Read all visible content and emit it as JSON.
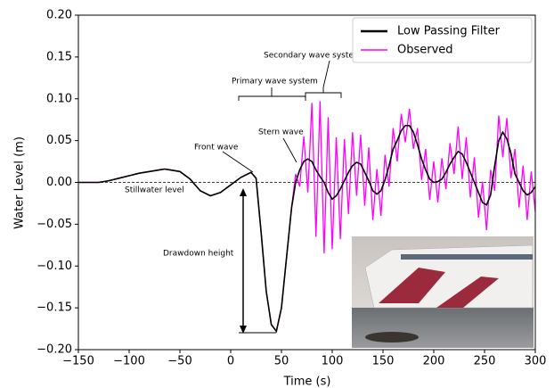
{
  "chart_data": {
    "type": "line",
    "xlabel": "Time (s)",
    "ylabel": "Water Level (m)",
    "x": [
      -150,
      -130,
      -120,
      -110,
      -100,
      -90,
      -80,
      -70,
      -65,
      -60,
      -50,
      -40,
      -30,
      -20,
      -10,
      0,
      10,
      20,
      25,
      30,
      35,
      40,
      45,
      50,
      55,
      60,
      64,
      68,
      72,
      76,
      80,
      84,
      88,
      92,
      96,
      100,
      104,
      108,
      112,
      116,
      120,
      124,
      128,
      132,
      136,
      140,
      144,
      148,
      152,
      156,
      160,
      164,
      168,
      172,
      176,
      180,
      184,
      188,
      192,
      196,
      200,
      204,
      208,
      212,
      216,
      220,
      224,
      228,
      232,
      236,
      240,
      244,
      248,
      252,
      256,
      260,
      264,
      268,
      272,
      276,
      280,
      284,
      288,
      292,
      296,
      300
    ],
    "series": [
      {
        "name": "Low Passing Filter",
        "color": "#000000",
        "values": [
          0,
          0,
          0.002,
          0.005,
          0.008,
          0.011,
          0.013,
          0.015,
          0.016,
          0.015,
          0.013,
          0.004,
          -0.01,
          -0.016,
          -0.012,
          -0.003,
          0.006,
          0.012,
          0.005,
          -0.06,
          -0.13,
          -0.17,
          -0.178,
          -0.15,
          -0.09,
          -0.03,
          0.0,
          0.015,
          0.025,
          0.028,
          0.025,
          0.015,
          0.007,
          0.0,
          -0.012,
          -0.02,
          -0.016,
          -0.008,
          0.002,
          0.012,
          0.02,
          0.024,
          0.022,
          0.012,
          0.002,
          -0.01,
          -0.014,
          -0.01,
          0.003,
          0.02,
          0.04,
          0.05,
          0.062,
          0.068,
          0.068,
          0.06,
          0.045,
          0.028,
          0.015,
          0.004,
          0.0,
          0.001,
          0.004,
          0.012,
          0.022,
          0.03,
          0.037,
          0.034,
          0.024,
          0.012,
          0.0,
          -0.012,
          -0.024,
          -0.027,
          -0.015,
          0.02,
          0.05,
          0.06,
          0.052,
          0.035,
          0.01,
          0.0,
          -0.01,
          -0.015,
          -0.012,
          -0.005
        ]
      },
      {
        "name": "Observed",
        "color": "#ff00ff",
        "values": [
          0,
          0,
          0.002,
          0.005,
          0.008,
          0.011,
          0.013,
          0.015,
          0.016,
          0.015,
          0.013,
          0.004,
          -0.01,
          -0.016,
          -0.012,
          -0.003,
          0.006,
          0.012,
          0.005,
          -0.06,
          -0.13,
          -0.17,
          -0.178,
          -0.15,
          -0.09,
          -0.03,
          0.01,
          -0.005,
          0.055,
          -0.012,
          0.095,
          -0.065,
          0.097,
          -0.085,
          0.078,
          -0.08,
          0.054,
          -0.068,
          0.052,
          -0.038,
          0.06,
          -0.016,
          0.057,
          -0.028,
          0.042,
          -0.045,
          0.016,
          -0.04,
          0.033,
          -0.005,
          0.065,
          0.025,
          0.082,
          0.048,
          0.088,
          0.04,
          0.065,
          0.003,
          0.04,
          -0.021,
          0.025,
          -0.024,
          0.029,
          -0.008,
          0.047,
          0.01,
          0.067,
          0.004,
          0.054,
          -0.018,
          0.03,
          -0.042,
          0.001,
          -0.057,
          0.015,
          -0.01,
          0.08,
          0.03,
          0.077,
          0.005,
          0.04,
          -0.03,
          0.02,
          -0.045,
          0.013,
          -0.035
        ]
      }
    ],
    "xlim": [
      -150,
      300
    ],
    "xticks": [
      {
        "value": -150,
        "label": "−150"
      },
      {
        "value": -100,
        "label": "−100"
      },
      {
        "value": -50,
        "label": "−50"
      },
      0,
      50,
      100,
      150,
      200,
      250,
      300
    ],
    "ylim": [
      -0.2,
      0.2
    ],
    "yticks": [
      {
        "value": -0.2,
        "label": "−0.20"
      },
      {
        "value": -0.15,
        "label": "−0.15"
      },
      {
        "value": -0.1,
        "label": "−0.10"
      },
      {
        "value": -0.05,
        "label": "−0.05"
      },
      {
        "value": 0,
        "label": "0.00"
      },
      {
        "value": 0.05,
        "label": "0.05"
      },
      {
        "value": 0.1,
        "label": "0.10"
      },
      {
        "value": 0.15,
        "label": "0.15"
      },
      {
        "value": 0.2,
        "label": "0.20"
      }
    ],
    "hline": 0,
    "legend": "upper right",
    "annotations": [
      "Secondary wave system",
      "Primary wave system",
      "Stern wave",
      "Front wave",
      "Stillwater level",
      "Drawdown height"
    ]
  }
}
